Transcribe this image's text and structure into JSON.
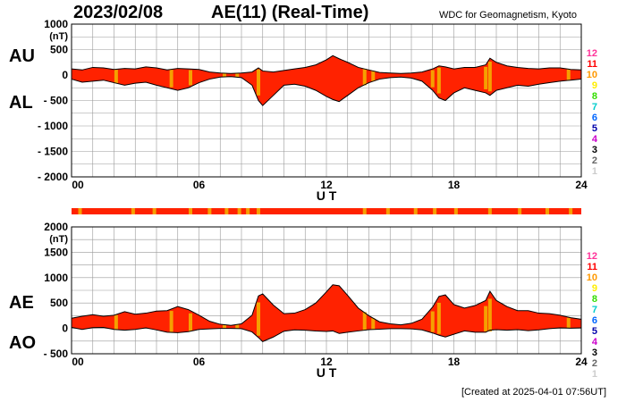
{
  "header": {
    "date": "2023/02/08",
    "title": "AE(11) (Real-Time)",
    "source": "WDC for Geomagnetism, Kyoto"
  },
  "footer": {
    "created": "[Created at 2025-04-01 07:56UT]"
  },
  "colors": {
    "fill": "#ff2200",
    "outline": "#000000",
    "orange_bar": "#f5a000",
    "grid": "#999999"
  },
  "station_scale": {
    "labels": [
      "12",
      "11",
      "10",
      "9",
      "8",
      "7",
      "6",
      "5",
      "4",
      "3",
      "2",
      "1"
    ],
    "colors": [
      "#ff3399",
      "#ff0000",
      "#ff9900",
      "#ffee00",
      "#33dd00",
      "#00cccc",
      "#0066ff",
      "#0000aa",
      "#cc00cc",
      "#000000",
      "#666666",
      "#cccccc"
    ]
  },
  "chart_data": [
    {
      "type": "area",
      "panel": "top",
      "series_labels": [
        "AU",
        "AL"
      ],
      "ylabel": "(nT)",
      "xlabel": "U T",
      "ylim": [
        -2000,
        1000
      ],
      "yticks": [
        1000,
        500,
        0,
        -500,
        -1000,
        -1500,
        -2000
      ],
      "ytick_labels": [
        "1000",
        "500",
        "0",
        "- 500",
        "- 1000",
        "- 1500",
        "- 2000"
      ],
      "xlim": [
        0,
        24
      ],
      "xticks": [
        0,
        6,
        12,
        18,
        24
      ],
      "xtick_labels": [
        "00",
        "06",
        "12",
        "18",
        "24"
      ],
      "x": [
        0,
        0.5,
        1,
        1.5,
        2,
        2.5,
        3,
        3.5,
        4,
        4.5,
        5,
        5.5,
        6,
        6.5,
        7,
        7.5,
        8,
        8.5,
        8.8,
        9,
        9.5,
        10,
        10.5,
        11,
        11.5,
        12,
        12.3,
        12.6,
        13,
        13.5,
        14,
        14.5,
        15,
        15.5,
        16,
        16.5,
        17,
        17.3,
        17.6,
        18,
        18.5,
        19,
        19.5,
        19.7,
        20,
        20.5,
        21,
        21.5,
        22,
        22.5,
        23,
        23.5,
        24
      ],
      "au": [
        120,
        100,
        150,
        140,
        110,
        130,
        120,
        160,
        140,
        100,
        130,
        120,
        110,
        60,
        40,
        30,
        40,
        60,
        140,
        80,
        60,
        90,
        120,
        150,
        200,
        300,
        380,
        320,
        250,
        150,
        100,
        50,
        40,
        30,
        40,
        60,
        120,
        180,
        160,
        120,
        150,
        150,
        200,
        330,
        250,
        180,
        150,
        130,
        120,
        140,
        140,
        110,
        100
      ],
      "al": [
        -80,
        -140,
        -120,
        -100,
        -150,
        -200,
        -160,
        -140,
        -200,
        -250,
        -300,
        -250,
        -150,
        -80,
        -40,
        -30,
        -50,
        -200,
        -500,
        -600,
        -400,
        -200,
        -180,
        -220,
        -300,
        -420,
        -480,
        -520,
        -400,
        -250,
        -150,
        -80,
        -50,
        -40,
        -60,
        -120,
        -300,
        -450,
        -500,
        -350,
        -250,
        -300,
        -350,
        -400,
        -300,
        -250,
        -200,
        -220,
        -180,
        -150,
        -120,
        -100,
        -80
      ]
    },
    {
      "type": "area",
      "panel": "bottom",
      "series_labels": [
        "AE",
        "AO"
      ],
      "ylabel": "(nT)",
      "xlabel": "U T",
      "ylim": [
        -500,
        2000
      ],
      "yticks": [
        2000,
        1500,
        1000,
        500,
        0,
        -500
      ],
      "ytick_labels": [
        "2000",
        "1500",
        "1000",
        "500",
        "0",
        "- 500"
      ],
      "xlim": [
        0,
        24
      ],
      "xticks": [
        0,
        6,
        12,
        18,
        24
      ],
      "xtick_labels": [
        "00",
        "06",
        "12",
        "18",
        "24"
      ],
      "x": [
        0,
        0.5,
        1,
        1.5,
        2,
        2.5,
        3,
        3.5,
        4,
        4.5,
        5,
        5.5,
        6,
        6.5,
        7,
        7.5,
        8,
        8.5,
        8.8,
        9,
        9.5,
        10,
        10.5,
        11,
        11.5,
        12,
        12.3,
        12.6,
        13,
        13.5,
        14,
        14.5,
        15,
        15.5,
        16,
        16.5,
        17,
        17.3,
        17.6,
        18,
        18.5,
        19,
        19.5,
        19.7,
        20,
        20.5,
        21,
        21.5,
        22,
        22.5,
        23,
        23.5,
        24
      ],
      "ae": [
        200,
        240,
        270,
        240,
        260,
        330,
        280,
        300,
        340,
        350,
        430,
        370,
        260,
        140,
        80,
        60,
        90,
        260,
        640,
        680,
        460,
        290,
        300,
        370,
        500,
        720,
        860,
        840,
        650,
        400,
        250,
        130,
        90,
        70,
        100,
        180,
        420,
        630,
        660,
        470,
        400,
        450,
        550,
        730,
        550,
        430,
        350,
        350,
        300,
        290,
        260,
        210,
        180
      ],
      "ao": [
        20,
        -20,
        15,
        20,
        -20,
        -35,
        -20,
        10,
        -30,
        -75,
        -85,
        -65,
        -20,
        -10,
        0,
        0,
        -5,
        -70,
        -180,
        -260,
        -170,
        -55,
        -30,
        -35,
        -50,
        -60,
        -50,
        -100,
        -75,
        -50,
        -25,
        -15,
        -5,
        -5,
        -10,
        -30,
        -90,
        -135,
        -170,
        -115,
        -50,
        -75,
        -75,
        -35,
        -25,
        -35,
        -25,
        -45,
        -30,
        -5,
        10,
        5,
        10
      ]
    }
  ],
  "ribbon": {
    "base_color": "#ff2200",
    "orange_hours": [
      0.4,
      2.9,
      3.9,
      5.6,
      6.5,
      7.3,
      7.9,
      8.3,
      8.8,
      13.8,
      14.9,
      16.2,
      17.1,
      18.1,
      19.7,
      21.1,
      22.4,
      23.5
    ]
  },
  "orange_bands": [
    2.1,
    4.7,
    5.6,
    7.2,
    7.8,
    8.8,
    13.8,
    14.2,
    17.0,
    17.3,
    19.5,
    19.7,
    23.4
  ]
}
